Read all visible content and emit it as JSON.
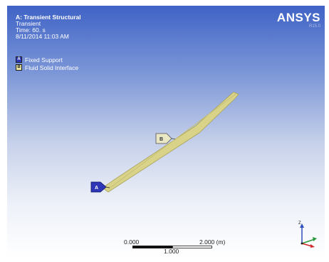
{
  "analysis": {
    "title": "A: Transient Structural",
    "type": "Transient",
    "time": "Time: 60. s",
    "date": "8/11/2014 11:03 AM"
  },
  "legend": [
    {
      "key": "A",
      "label": "Fixed Support",
      "color": "#2e36b8"
    },
    {
      "key": "B",
      "label": "Fluid Solid Interface",
      "color": "#e6e3a0"
    }
  ],
  "logo": {
    "brand": "ANSYS",
    "version": "R15.0"
  },
  "markers": {
    "fixed_support_tag": "A",
    "fluid_solid_tag": "B"
  },
  "scale_bar": {
    "start": "0.000",
    "end": "2.000 (m)",
    "mid": "1.000"
  },
  "triad": {
    "axis": "Z"
  },
  "colors": {
    "beam": "#d9d38a",
    "beam_edge": "#a8a35a",
    "viewport_top": "#3f63c6"
  }
}
